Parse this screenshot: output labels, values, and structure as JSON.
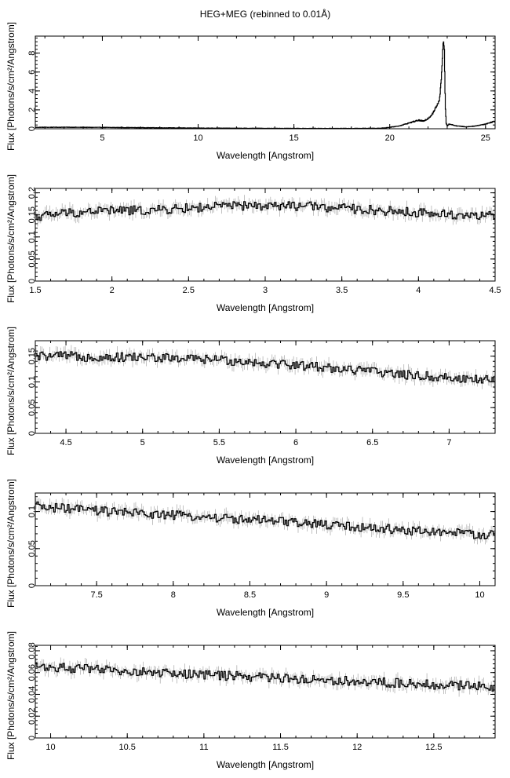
{
  "title": "HEG+MEG (rebinned to 0.01Å)",
  "chart_data": [
    {
      "type": "line",
      "xlabel": "Wavelength [Angstrom]",
      "ylabel": "Flux [Photons/s/cm²/Angstrom]",
      "xlim": [
        1.5,
        25.5
      ],
      "ylim": [
        0,
        9.8
      ],
      "xticks": [
        5,
        10,
        15,
        20,
        25
      ],
      "yticks": [
        0,
        2,
        4,
        6,
        8
      ],
      "x": [
        1.5,
        3.0,
        5.0,
        8.0,
        10.0,
        12.0,
        15.0,
        18.0,
        19.5,
        20.0,
        20.5,
        21.0,
        21.5,
        21.8,
        22.0,
        22.2,
        22.4,
        22.6,
        22.7,
        22.8,
        22.85,
        22.9,
        22.95,
        23.0,
        23.1,
        23.5,
        24.0,
        24.5,
        25.0,
        25.5
      ],
      "y": [
        0.15,
        0.16,
        0.14,
        0.1,
        0.07,
        0.05,
        0.03,
        0.03,
        0.05,
        0.15,
        0.3,
        0.6,
        0.9,
        0.8,
        1.1,
        1.5,
        2.2,
        3.0,
        5.5,
        9.5,
        8.5,
        2.5,
        0.6,
        0.3,
        0.5,
        0.3,
        0.2,
        0.3,
        0.5,
        0.8
      ]
    },
    {
      "type": "line",
      "xlabel": "Wavelength [Angstrom]",
      "ylabel": "Flux [Photons/s/cm²/Angstrom]",
      "xlim": [
        1.5,
        4.5
      ],
      "ylim": [
        0,
        0.21
      ],
      "xticks": [
        1.5,
        2,
        2.5,
        3,
        3.5,
        4,
        4.5
      ],
      "yticks": [
        0,
        0.05,
        0.1,
        0.15,
        0.2
      ],
      "x": [
        1.5,
        1.6,
        1.7,
        1.8,
        1.9,
        2.0,
        2.25,
        2.5,
        2.75,
        3.0,
        3.25,
        3.5,
        3.75,
        4.0,
        4.25,
        4.5
      ],
      "y": [
        0.145,
        0.15,
        0.155,
        0.155,
        0.16,
        0.16,
        0.16,
        0.165,
        0.17,
        0.17,
        0.17,
        0.165,
        0.16,
        0.155,
        0.15,
        0.148
      ]
    },
    {
      "type": "line",
      "xlabel": "Wavelength [Angstrom]",
      "ylabel": "Flux [Photons/s/cm²/Angstrom]",
      "xlim": [
        4.3,
        7.3
      ],
      "ylim": [
        0,
        0.18
      ],
      "xticks": [
        4.5,
        5,
        5.5,
        6,
        6.5,
        7
      ],
      "yticks": [
        0,
        0.05,
        0.1,
        0.15
      ],
      "x": [
        4.3,
        4.5,
        4.75,
        5.0,
        5.25,
        5.5,
        5.75,
        6.0,
        6.25,
        6.5,
        6.75,
        7.0,
        7.3
      ],
      "y": [
        0.15,
        0.15,
        0.148,
        0.148,
        0.145,
        0.143,
        0.138,
        0.133,
        0.127,
        0.12,
        0.113,
        0.108,
        0.103
      ]
    },
    {
      "type": "line",
      "xlabel": "Wavelength [Angstrom]",
      "ylabel": "Flux [Photons/s/cm²/Angstrom]",
      "xlim": [
        7.1,
        10.1
      ],
      "ylim": [
        0,
        0.125
      ],
      "xticks": [
        7.5,
        8,
        8.5,
        9,
        9.5,
        10
      ],
      "yticks": [
        0,
        0.05,
        0.1
      ],
      "x": [
        7.1,
        7.5,
        8.0,
        8.5,
        9.0,
        9.5,
        10.1
      ],
      "y": [
        0.107,
        0.101,
        0.095,
        0.089,
        0.082,
        0.075,
        0.068
      ]
    },
    {
      "type": "line",
      "xlabel": "Wavelength [Angstrom]",
      "ylabel": "Flux [Photons/s/cm²/Angstrom]",
      "xlim": [
        9.9,
        12.9
      ],
      "ylim": [
        0,
        0.085
      ],
      "xticks": [
        10,
        10.5,
        11,
        11.5,
        12,
        12.5
      ],
      "yticks": [
        0,
        0.02,
        0.04,
        0.06,
        0.08
      ],
      "x": [
        9.9,
        10.25,
        10.5,
        11.0,
        11.5,
        12.0,
        12.5,
        12.9
      ],
      "y": [
        0.066,
        0.063,
        0.061,
        0.058,
        0.055,
        0.052,
        0.049,
        0.047
      ]
    }
  ]
}
